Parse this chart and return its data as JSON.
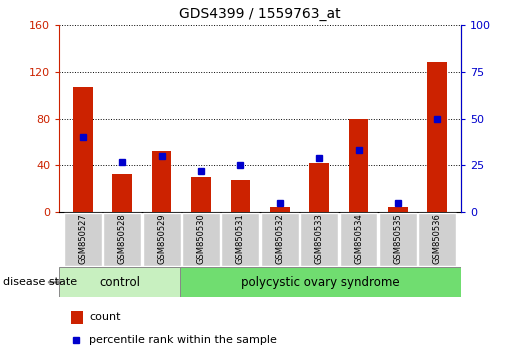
{
  "title": "GDS4399 / 1559763_at",
  "samples": [
    "GSM850527",
    "GSM850528",
    "GSM850529",
    "GSM850530",
    "GSM850531",
    "GSM850532",
    "GSM850533",
    "GSM850534",
    "GSM850535",
    "GSM850536"
  ],
  "counts": [
    107,
    33,
    52,
    30,
    28,
    5,
    42,
    80,
    5,
    128
  ],
  "percentiles": [
    40,
    27,
    30,
    22,
    25,
    5,
    29,
    33,
    5,
    50
  ],
  "ylim_left": [
    0,
    160
  ],
  "ylim_right": [
    0,
    100
  ],
  "yticks_left": [
    0,
    40,
    80,
    120,
    160
  ],
  "yticks_right": [
    0,
    25,
    50,
    75,
    100
  ],
  "bar_color": "#cc2200",
  "dot_color": "#0000cc",
  "control_n": 3,
  "pcos_n": 7,
  "control_label": "control",
  "pcos_label": "polycystic ovary syndrome",
  "disease_state_label": "disease state",
  "control_bg": "#c8f0c0",
  "pcos_bg": "#70dd70",
  "sample_bg": "#d0d0d0",
  "legend_count": "count",
  "legend_percentile": "percentile rank within the sample",
  "bar_width": 0.5
}
